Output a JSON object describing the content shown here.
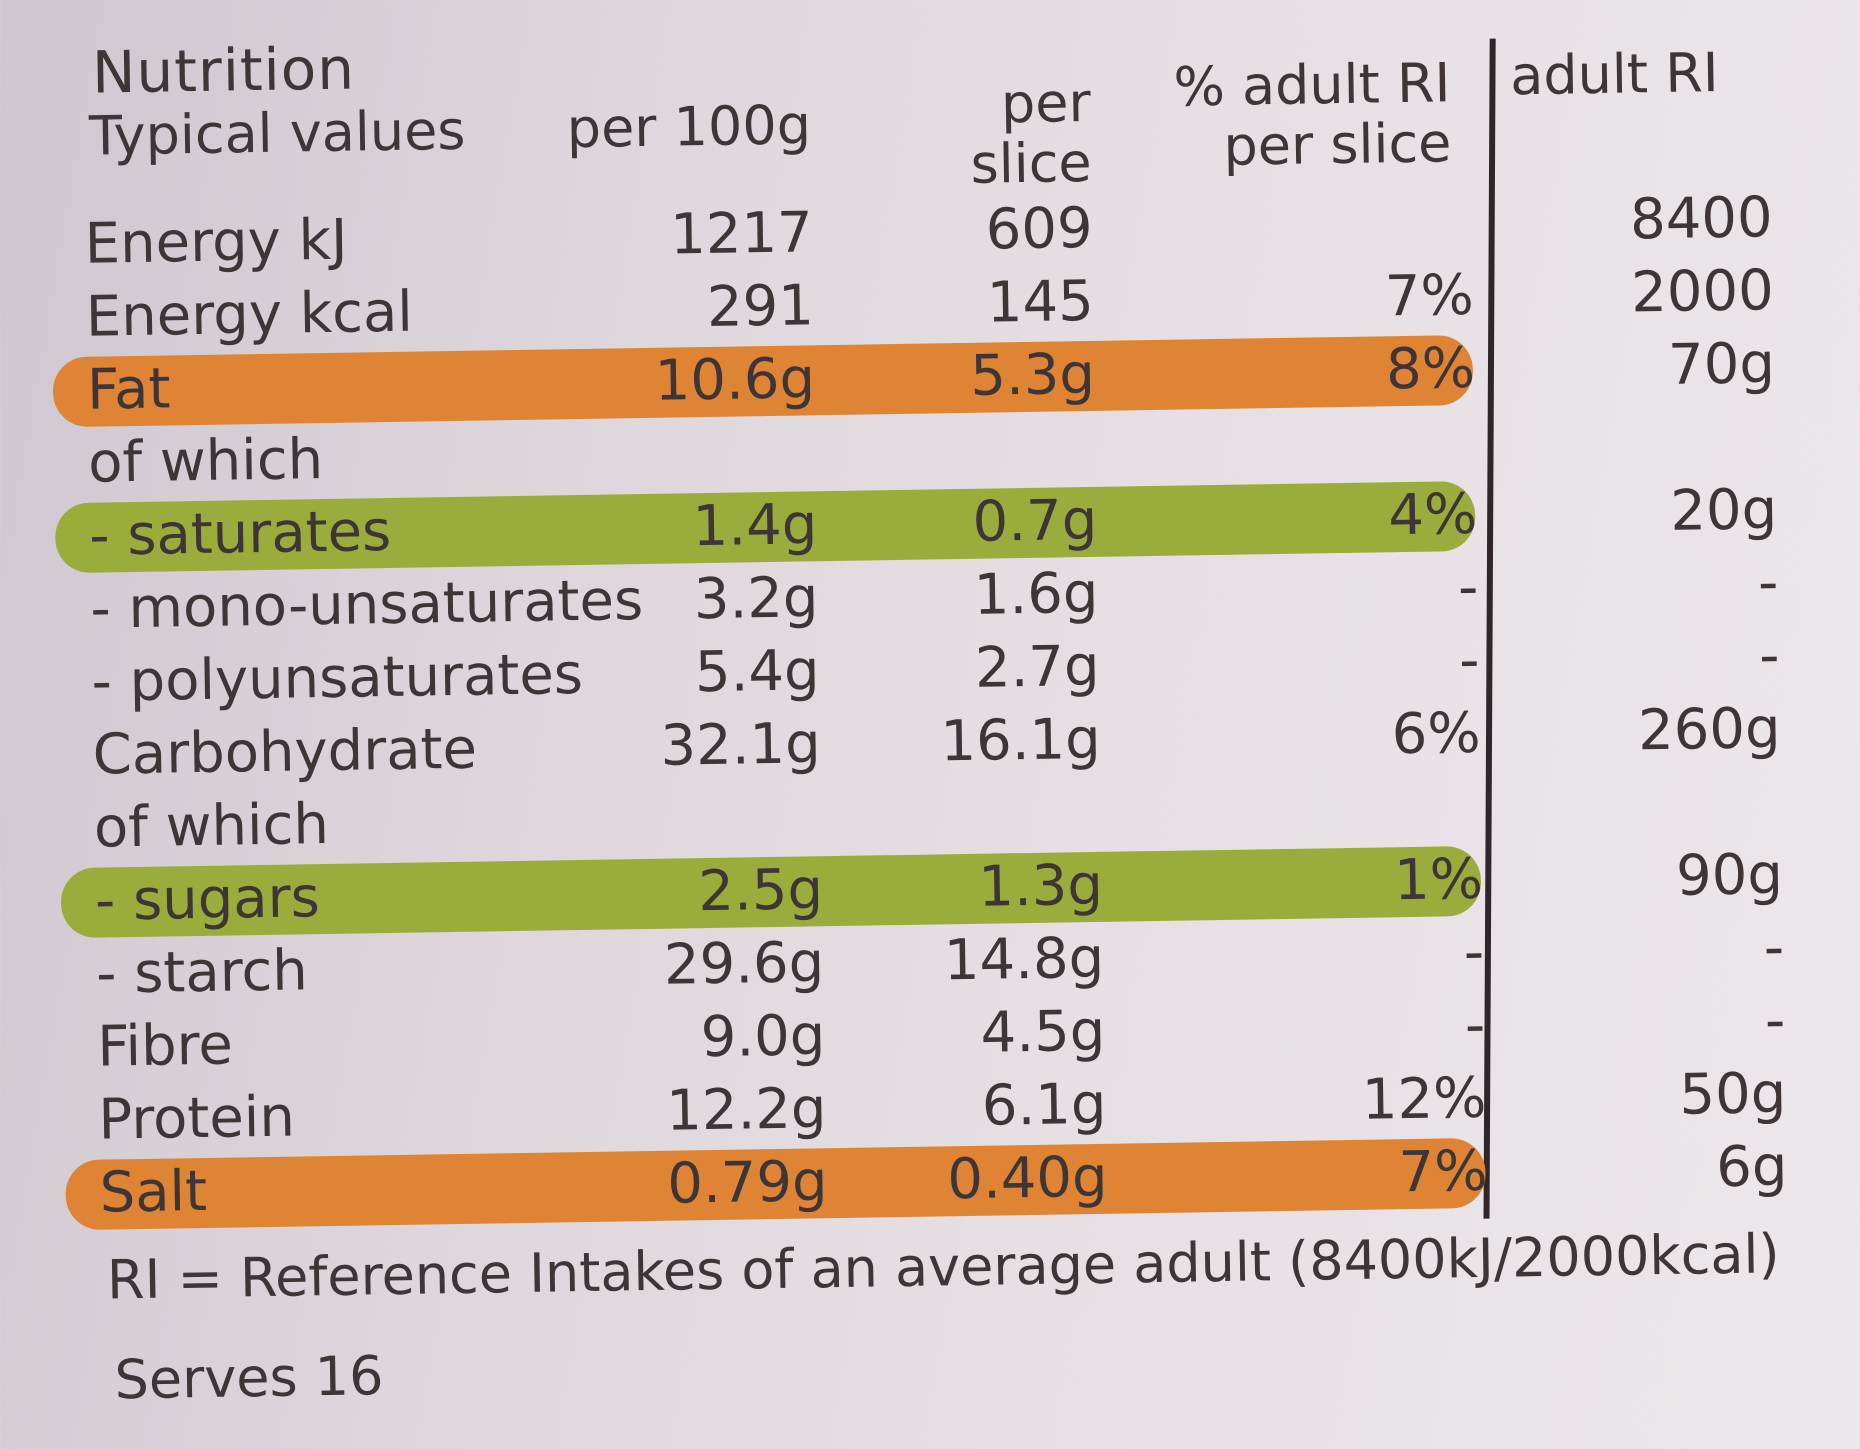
{
  "table": {
    "title": "Nutrition",
    "headers": {
      "typical": "Typical values",
      "per100": "per 100g",
      "per_slice": "per\nslice",
      "pct_ri": "% adult RI\nper slice",
      "adult_ri": "adult RI"
    },
    "rows": [
      {
        "name": "Energy kJ",
        "per100": "1217",
        "slice": "609",
        "pct": "",
        "ri": "8400",
        "highlight": ""
      },
      {
        "name": "Energy kcal",
        "per100": "291",
        "slice": "145",
        "pct": "7%",
        "ri": "2000",
        "highlight": ""
      },
      {
        "name": "Fat",
        "per100": "10.6g",
        "slice": "5.3g",
        "pct": "8%",
        "ri": "70g",
        "highlight": "orange"
      },
      {
        "name": "of which",
        "per100": "",
        "slice": "",
        "pct": "",
        "ri": "",
        "highlight": ""
      },
      {
        "name": "- saturates",
        "per100": "1.4g",
        "slice": "0.7g",
        "pct": "4%",
        "ri": "20g",
        "highlight": "green"
      },
      {
        "name": "- mono-unsaturates",
        "per100": "3.2g",
        "slice": "1.6g",
        "pct": "-",
        "ri": "-",
        "highlight": ""
      },
      {
        "name": "- polyunsaturates",
        "per100": "5.4g",
        "slice": "2.7g",
        "pct": "-",
        "ri": "-",
        "highlight": ""
      },
      {
        "name": "Carbohydrate",
        "per100": "32.1g",
        "slice": "16.1g",
        "pct": "6%",
        "ri": "260g",
        "highlight": ""
      },
      {
        "name": "of which",
        "per100": "",
        "slice": "",
        "pct": "",
        "ri": "",
        "highlight": ""
      },
      {
        "name": "- sugars",
        "per100": "2.5g",
        "slice": "1.3g",
        "pct": "1%",
        "ri": "90g",
        "highlight": "green"
      },
      {
        "name": "- starch",
        "per100": "29.6g",
        "slice": "14.8g",
        "pct": "-",
        "ri": "-",
        "highlight": ""
      },
      {
        "name": "Fibre",
        "per100": "9.0g",
        "slice": "4.5g",
        "pct": "-",
        "ri": "-",
        "highlight": ""
      },
      {
        "name": "Protein",
        "per100": "12.2g",
        "slice": "6.1g",
        "pct": "12%",
        "ri": "50g",
        "highlight": ""
      },
      {
        "name": "Salt",
        "per100": "0.79g",
        "slice": "0.40g",
        "pct": "7%",
        "ri": "6g",
        "highlight": "orange"
      }
    ],
    "footnote": "RI = Reference Intakes of an average adult (8400kJ/2000kcal)",
    "serves": "Serves 16"
  },
  "colors": {
    "highlight_orange": "#df8434",
    "highlight_green": "#9aad3c",
    "text": "#3e3537"
  }
}
